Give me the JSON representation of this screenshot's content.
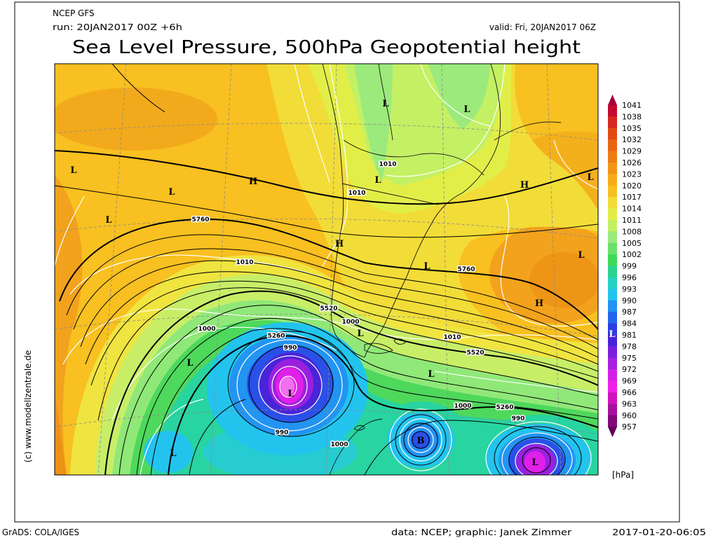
{
  "header": {
    "model": "NCEP GFS",
    "run": "run: 20JAN2017 00Z +6h",
    "valid": "valid: Fri, 20JAN2017 06Z",
    "title": "Sea Level Pressure, 500hPa Geopotential height"
  },
  "colorbar": {
    "unit": "[hPa]",
    "labels": [
      "1041",
      "1038",
      "1035",
      "1032",
      "1029",
      "1026",
      "1023",
      "1020",
      "1017",
      "1014",
      "1011",
      "1008",
      "1005",
      "1002",
      "999",
      "996",
      "993",
      "990",
      "987",
      "984",
      "981",
      "978",
      "975",
      "972",
      "969",
      "966",
      "963",
      "960",
      "957"
    ],
    "colors": [
      "#a5003a",
      "#c40a30",
      "#d62820",
      "#e24a14",
      "#ea6412",
      "#ee7c12",
      "#f29414",
      "#f6ac18",
      "#f8c020",
      "#f2dc38",
      "#e2ee48",
      "#c4f064",
      "#9cea7c",
      "#6ce06a",
      "#40d858",
      "#28d490",
      "#24d2c4",
      "#22c4ee",
      "#2294f2",
      "#2266ee",
      "#2a3ee2",
      "#4a24d8",
      "#7a20dc",
      "#a820e2",
      "#d420e6",
      "#f020e8",
      "#d212be",
      "#a8109c",
      "#82087a",
      "#62005c"
    ]
  },
  "map": {
    "pressure_centers": [
      "L",
      "L",
      "L",
      "L",
      "L",
      "L",
      "H",
      "H",
      "L",
      "H",
      "L",
      "L",
      "H",
      "L",
      "L",
      "L",
      "L",
      "L",
      "L",
      "B",
      "L"
    ],
    "contour_labels": [
      "5760",
      "5760",
      "1010",
      "1010",
      "1010",
      "1010",
      "5520",
      "5520",
      "1000",
      "1000",
      "1000",
      "1000",
      "5260",
      "5260",
      "990",
      "990",
      "990"
    ]
  },
  "credits": {
    "copyright": "(c) www.modellzentrale.de",
    "software": "GrADS: COLA/IGES",
    "source": "data: NCEP; graphic: Janek Zimmer",
    "timestamp": "2017-01-20-06:05"
  }
}
